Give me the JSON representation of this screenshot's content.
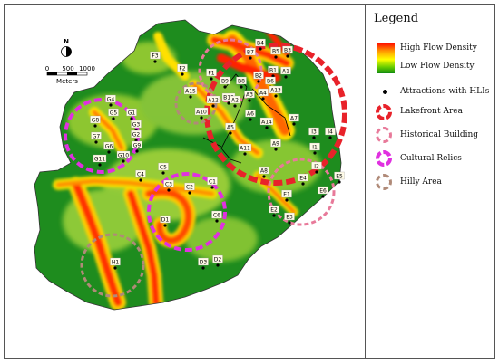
{
  "legend": {
    "title": "Legend",
    "high": "High Flow Density",
    "low": "Low Flow Density",
    "attractions": "Attractions with HLIs",
    "lakefront": "Lakefront Area",
    "historical": "Historical Building",
    "cultural": "Cultural Relics",
    "hilly": "Hilly Area"
  },
  "scale": {
    "zero": "0",
    "mid": "500",
    "max": "1000",
    "unit": "Meters"
  },
  "north": "N",
  "colors": {
    "lakefront": "#e8222a",
    "historical": "#e87a9a",
    "cultural": "#e030e0",
    "hilly": "#b08a78",
    "low": "#1e8c1e",
    "high": "#ff2000"
  },
  "attractions": [
    {
      "id": "F1"
    },
    {
      "id": "F2"
    },
    {
      "id": "F3"
    },
    {
      "id": "A15"
    },
    {
      "id": "A10"
    },
    {
      "id": "A12"
    },
    {
      "id": "B9"
    },
    {
      "id": "B10"
    },
    {
      "id": "B8"
    },
    {
      "id": "B7"
    },
    {
      "id": "B4"
    },
    {
      "id": "B5"
    },
    {
      "id": "B3"
    },
    {
      "id": "B2"
    },
    {
      "id": "B1"
    },
    {
      "id": "A1"
    },
    {
      "id": "B6"
    },
    {
      "id": "A4"
    },
    {
      "id": "A13"
    },
    {
      "id": "A3"
    },
    {
      "id": "A2"
    },
    {
      "id": "A6"
    },
    {
      "id": "A14"
    },
    {
      "id": "A5"
    },
    {
      "id": "A7"
    },
    {
      "id": "A11"
    },
    {
      "id": "A9"
    },
    {
      "id": "A8"
    },
    {
      "id": "I3"
    },
    {
      "id": "I4"
    },
    {
      "id": "I1"
    },
    {
      "id": "I2"
    },
    {
      "id": "E4"
    },
    {
      "id": "E5"
    },
    {
      "id": "E6"
    },
    {
      "id": "E1"
    },
    {
      "id": "E2"
    },
    {
      "id": "E3"
    },
    {
      "id": "G4"
    },
    {
      "id": "G5"
    },
    {
      "id": "G1"
    },
    {
      "id": "G8"
    },
    {
      "id": "G3"
    },
    {
      "id": "G2"
    },
    {
      "id": "G7"
    },
    {
      "id": "G6"
    },
    {
      "id": "G9"
    },
    {
      "id": "G11"
    },
    {
      "id": "G10"
    },
    {
      "id": "C4"
    },
    {
      "id": "C5"
    },
    {
      "id": "C3"
    },
    {
      "id": "C2"
    },
    {
      "id": "C1"
    },
    {
      "id": "C6"
    },
    {
      "id": "D1"
    },
    {
      "id": "D3"
    },
    {
      "id": "D2"
    },
    {
      "id": "H1"
    }
  ]
}
